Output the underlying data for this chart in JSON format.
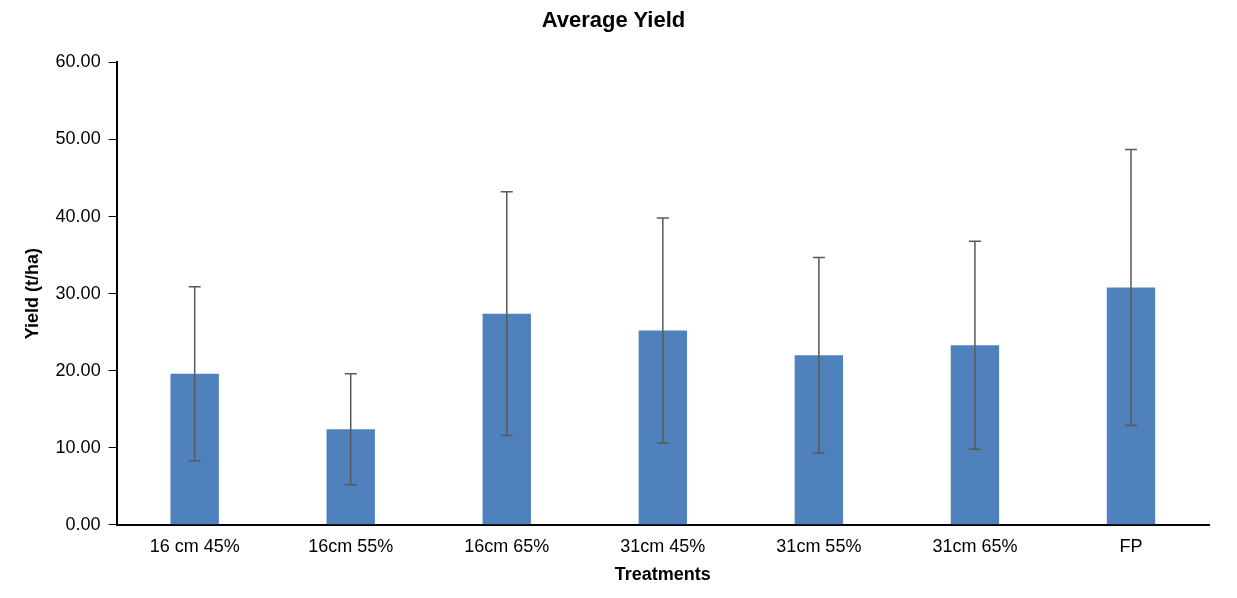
{
  "chart_data": {
    "type": "bar",
    "title": "Average Yield",
    "xlabel": "Treatments",
    "ylabel": "Yield (t/ha)",
    "categories": [
      "16 cm 45%",
      "16cm 55%",
      "16cm 65%",
      "31cm 45%",
      "31cm 55%",
      "31cm 65%",
      "FP"
    ],
    "values": [
      19.6,
      12.4,
      27.4,
      25.2,
      22.0,
      23.3,
      30.8
    ],
    "errors": [
      11.3,
      7.2,
      15.8,
      14.6,
      12.7,
      13.5,
      17.9
    ],
    "color": "#4f81bd",
    "ylim": [
      0,
      60
    ],
    "yticks": [
      {
        "value": 0,
        "label": "0.00"
      },
      {
        "value": 10,
        "label": "10.00"
      },
      {
        "value": 20,
        "label": "20.00"
      },
      {
        "value": 30,
        "label": "30.00"
      },
      {
        "value": 40,
        "label": "40.00"
      },
      {
        "value": 50,
        "label": "50.00"
      },
      {
        "value": 60,
        "label": "60.00"
      }
    ],
    "grid": false,
    "legend": false
  }
}
